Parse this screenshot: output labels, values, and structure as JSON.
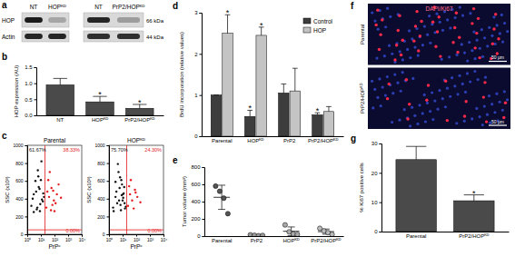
{
  "chart_data": [
    {
      "type": "blot",
      "title": "a",
      "lanes": [
        "NT",
        "HOPᴷᴰ",
        "NT",
        "PrP2/HOPᴷᴰ"
      ],
      "rows": [
        {
          "label": "HOP",
          "size": "66 kDa",
          "intensities": [
            0.95,
            0.25,
            0.9,
            0.3
          ]
        },
        {
          "label": "Actin",
          "size": "44 kDa",
          "intensities": [
            0.9,
            0.9,
            0.85,
            0.85
          ]
        }
      ]
    },
    {
      "type": "bar",
      "title": "b",
      "categories": [
        "NT",
        "HOPᴷᴰ",
        "PrP2/HOPᴷᴰ"
      ],
      "values": [
        0.95,
        0.42,
        0.22
      ],
      "errors": [
        0.2,
        0.17,
        0.12
      ],
      "annotations": [
        null,
        "*",
        "*"
      ],
      "color": "#4a4a4a",
      "y_label": "HOP expression (AU)",
      "ylim": [
        0,
        1.5
      ],
      "yticks": [
        {
          "value": 0,
          "label": "0.0"
        },
        {
          "value": 0.5,
          "label": "0.5"
        },
        {
          "value": 1,
          "label": "1.0"
        },
        {
          "value": 1.5,
          "label": "1.5"
        }
      ]
    },
    {
      "type": "scatter",
      "title": "c",
      "subtitle": "Parental",
      "log": "x",
      "x_label": "PrPᶜ",
      "y_label": "SSC (x10³)",
      "xlim": [
        1,
        10000
      ],
      "xticks": [
        {
          "value": 1,
          "label": "10⁰"
        },
        {
          "value": 10,
          "label": "10¹"
        },
        {
          "value": 100,
          "label": "10²"
        },
        {
          "value": 1000,
          "label": "10³"
        },
        {
          "value": 10000,
          "label": "10⁴"
        }
      ],
      "ylim": [
        0,
        1000
      ],
      "yticks": [
        0,
        200,
        400,
        600,
        800,
        1000
      ],
      "gate_x": 20,
      "gate_y": 50,
      "quadrants": [
        61.67,
        38.33,
        0.0
      ],
      "quadrant_labels": [
        "61.67%",
        "38.33%",
        "0.00%"
      ],
      "series": [
        {
          "color": "#111111",
          "x": [
            2,
            3,
            5,
            8,
            4,
            12,
            6,
            9,
            15,
            3,
            7,
            10,
            2.5,
            5.5,
            11,
            14,
            4.5,
            8.5,
            6.5,
            17
          ],
          "values": [
            320,
            450,
            280,
            510,
            600,
            390,
            720,
            340,
            460,
            250,
            530,
            610,
            400,
            300,
            820,
            370,
            480,
            260,
            650,
            420
          ]
        },
        {
          "color": "#e41a1c",
          "x": [
            25,
            40,
            60,
            90,
            150,
            35,
            55,
            80,
            120,
            200,
            45,
            70,
            300,
            30,
            100
          ],
          "values": [
            300,
            420,
            520,
            380,
            450,
            610,
            270,
            490,
            350,
            560,
            700,
            330,
            410,
            480,
            260
          ]
        }
      ]
    },
    {
      "type": "scatter",
      "subtitle": "HOPᴷᴰ",
      "log": "x",
      "x_label": "PrPᶜ",
      "y_label": "SSC (x10³)",
      "xlim": [
        1,
        10000
      ],
      "xticks": [
        {
          "value": 1,
          "label": "10⁰"
        },
        {
          "value": 10,
          "label": "10¹"
        },
        {
          "value": 100,
          "label": "10²"
        },
        {
          "value": 1000,
          "label": "10³"
        },
        {
          "value": 10000,
          "label": "10⁴"
        }
      ],
      "ylim": [
        0,
        1000
      ],
      "yticks": [
        0,
        200,
        400,
        600,
        800,
        1000
      ],
      "gate_x": 20,
      "gate_y": 50,
      "quadrants": [
        75.7,
        24.3,
        0.0
      ],
      "quadrant_labels": [
        "75.70%",
        "24.30%",
        "0.00%"
      ],
      "series": [
        {
          "color": "#111111",
          "x": [
            2,
            3,
            4,
            6,
            8,
            10,
            12,
            15,
            5,
            7,
            9,
            3.5,
            2.2,
            6.5,
            11,
            14,
            4.5,
            8.5,
            13,
            17,
            5.5,
            7.5,
            3,
            10.5
          ],
          "values": [
            300,
            420,
            350,
            520,
            610,
            380,
            460,
            290,
            700,
            330,
            560,
            480,
            260,
            640,
            410,
            350,
            790,
            440,
            530,
            310,
            380,
            270,
            590,
            450
          ]
        },
        {
          "color": "#e41a1c",
          "x": [
            25,
            35,
            50,
            80,
            120,
            40,
            65,
            200,
            30,
            90
          ],
          "values": [
            320,
            450,
            380,
            500,
            420,
            610,
            290,
            360,
            540,
            470
          ]
        }
      ]
    },
    {
      "type": "bar",
      "title": "d",
      "categories": [
        "Parental",
        "HOPᴷᴰ",
        "PrP2",
        "PrP2/HOPᴷᴰ"
      ],
      "series": [
        {
          "name": "Control",
          "color": "#3d3d3d",
          "values": [
            1,
            0.48,
            1.05,
            0.52
          ],
          "errors": [
            0,
            0.15,
            0.22,
            0.05
          ],
          "annotations": [
            null,
            "*",
            null,
            "*"
          ]
        },
        {
          "name": "HOP",
          "color": "#c4c4c4",
          "values": [
            2.5,
            2.45,
            1.1,
            0.6
          ],
          "errors": [
            0.45,
            0.2,
            0.55,
            0.12
          ],
          "annotations": [
            "*",
            "*",
            null,
            null
          ]
        }
      ],
      "y_label": "BrdU incorporation (relative values)",
      "ylim": [
        0,
        3
      ],
      "yticks": [
        0,
        1,
        2,
        3
      ],
      "legend": "top-right"
    },
    {
      "type": "dot",
      "title": "e",
      "categories": [
        "Parental",
        "PrP2",
        "HOPᴷᴰ",
        "PrP2/HOPᴷᴰ"
      ],
      "values": [
        [
          580,
          520,
          440,
          260
        ],
        [
          15,
          10,
          5,
          8
        ],
        [
          130,
          50,
          25,
          20
        ],
        [
          90,
          60,
          40,
          20
        ]
      ],
      "means": [
        450,
        10,
        56,
        52
      ],
      "errors": [
        140,
        4,
        50,
        30
      ],
      "colors": [
        "#555555",
        "#999999",
        "#aaaaaa",
        "#bbbbbb"
      ],
      "y_label": "Tumor volume (mm³)",
      "ylim": [
        0,
        800
      ],
      "yticks": [
        0,
        200,
        400,
        600,
        800
      ]
    },
    {
      "type": "image",
      "title": "f",
      "subtitle": "DAPI/Ki67",
      "categories": [
        "Parental",
        "PrP2/HOPᴷᴰ"
      ],
      "red_cells": [
        40,
        16
      ],
      "blue_cells": [
        70,
        70
      ],
      "scale_bar": "50 μm"
    },
    {
      "type": "bar",
      "title": "g",
      "categories": [
        "Parental",
        "PrP2/HOPᴷᴰ"
      ],
      "values": [
        24.5,
        10.5
      ],
      "errors": [
        4.5,
        2
      ],
      "annotations": [
        null,
        "*"
      ],
      "color": "#4a4a4a",
      "y_label": "% Ki67 positive cells",
      "ylim": [
        0,
        30
      ],
      "yticks": [
        0,
        10,
        20,
        30
      ]
    }
  ]
}
